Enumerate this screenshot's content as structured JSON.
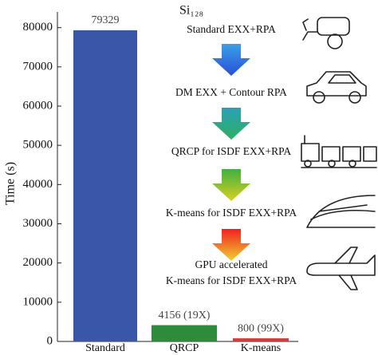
{
  "chart_data": {
    "type": "bar",
    "title": "Si₁₂₈",
    "y_label": "Time (s)",
    "categories": [
      "Standard",
      "QRCP",
      "K-means"
    ],
    "values": [
      79329,
      4156,
      800
    ],
    "value_labels": [
      "79329",
      "4156 (19X)",
      "800 (99X)"
    ],
    "colors": [
      "#3a56a8",
      "#2e8b3a",
      "#d83a3a"
    ],
    "ylim": [
      0,
      84000
    ],
    "yticks": [
      0,
      10000,
      20000,
      30000,
      40000,
      50000,
      60000,
      70000,
      80000
    ],
    "steps": [
      [
        "Standard EXX+RPA"
      ],
      [
        "DM EXX + Contour RPA"
      ],
      [
        "QRCP for ISDF EXX+RPA"
      ],
      [
        "K-means for ISDF EXX+RPA"
      ],
      [
        "GPU accelerated",
        "K-means for ISDF EXX+RPA"
      ]
    ]
  }
}
